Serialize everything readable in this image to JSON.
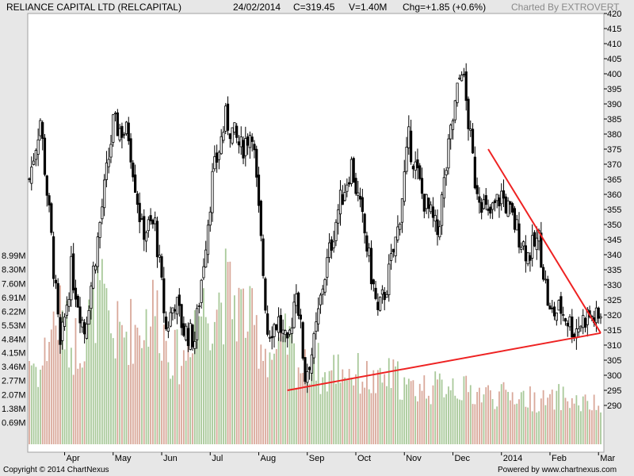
{
  "header": {
    "title": "RELIANCE CAPITAL LTD (RELCAPITAL)",
    "date": "24/02/2014",
    "close": "C=319.45",
    "volume": "V=1.40M",
    "change": "Chg=+1.85 (+0.6%)",
    "credit": "Charted By EXTROVERT"
  },
  "footer": {
    "copyright": "Copyright © 2014 ChartNexus",
    "powered": "Powered by www.chartnexus.com"
  },
  "colors": {
    "background": "#ffffff",
    "frame": "#e7e7e7",
    "candle": "#000000",
    "volume_up": "#a9c99a",
    "volume_down": "#d9a89a",
    "trendline": "#ee2222"
  },
  "chart_data": {
    "type": "candlestick",
    "price_axis": {
      "position": "right",
      "min": 285,
      "max": 420,
      "ticks": [
        290,
        295,
        300,
        305,
        310,
        315,
        320,
        325,
        330,
        335,
        340,
        345,
        350,
        355,
        360,
        365,
        370,
        375,
        380,
        385,
        390,
        395,
        400,
        405,
        410,
        415,
        420
      ]
    },
    "volume_axis": {
      "position": "left",
      "ticks": [
        "0.69M",
        "1.38M",
        "2.07M",
        "2.77M",
        "3.46M",
        "4.15M",
        "4.84M",
        "5.53M",
        "6.22M",
        "6.91M",
        "7.60M",
        "8.30M",
        "8.99M"
      ],
      "values": [
        0.69,
        1.38,
        2.07,
        2.77,
        3.46,
        4.15,
        4.84,
        5.53,
        6.22,
        6.91,
        7.6,
        8.3,
        8.99
      ]
    },
    "x_labels": [
      {
        "label": "Apr",
        "day": 16
      },
      {
        "label": "May",
        "day": 38
      },
      {
        "label": "Jun",
        "day": 60
      },
      {
        "label": "Jul",
        "day": 82
      },
      {
        "label": "Aug",
        "day": 104
      },
      {
        "label": "Sep",
        "day": 126
      },
      {
        "label": "Oct",
        "day": 148
      },
      {
        "label": "Nov",
        "day": 170
      },
      {
        "label": "Dec",
        "day": 192
      },
      {
        "label": "2014",
        "day": 214
      },
      {
        "label": "Feb",
        "day": 236
      },
      {
        "label": "Mar",
        "day": 258
      }
    ],
    "total_days": 260,
    "price_path": [
      [
        0,
        365
      ],
      [
        5,
        385
      ],
      [
        10,
        345
      ],
      [
        14,
        308
      ],
      [
        19,
        335
      ],
      [
        25,
        315
      ],
      [
        31,
        345
      ],
      [
        38,
        383
      ],
      [
        45,
        380
      ],
      [
        51,
        348
      ],
      [
        57,
        350
      ],
      [
        62,
        315
      ],
      [
        66,
        325
      ],
      [
        70,
        315
      ],
      [
        75,
        312
      ],
      [
        83,
        365
      ],
      [
        89,
        385
      ],
      [
        96,
        375
      ],
      [
        101,
        382
      ],
      [
        108,
        315
      ],
      [
        113,
        318
      ],
      [
        117,
        308
      ],
      [
        121,
        330
      ],
      [
        125,
        300
      ],
      [
        129,
        310
      ],
      [
        133,
        330
      ],
      [
        140,
        355
      ],
      [
        146,
        370
      ],
      [
        152,
        347
      ],
      [
        158,
        320
      ],
      [
        162,
        330
      ],
      [
        167,
        348
      ],
      [
        172,
        378
      ],
      [
        178,
        360
      ],
      [
        185,
        347
      ],
      [
        191,
        380
      ],
      [
        196,
        403
      ],
      [
        202,
        365
      ],
      [
        208,
        352
      ],
      [
        214,
        360
      ],
      [
        220,
        350
      ],
      [
        226,
        340
      ],
      [
        231,
        345
      ],
      [
        236,
        320
      ],
      [
        241,
        322
      ],
      [
        247,
        315
      ],
      [
        253,
        320
      ],
      [
        258,
        318
      ],
      [
        259,
        319.45
      ]
    ],
    "volume_path": [
      [
        0,
        3.9
      ],
      [
        5,
        3.2
      ],
      [
        10,
        5.5
      ],
      [
        14,
        6.0
      ],
      [
        19,
        4.5
      ],
      [
        25,
        5.0
      ],
      [
        31,
        7.3
      ],
      [
        38,
        5.0
      ],
      [
        45,
        5.3
      ],
      [
        51,
        5.5
      ],
      [
        57,
        6.5
      ],
      [
        62,
        4.8
      ],
      [
        66,
        4.0
      ],
      [
        70,
        3.8
      ],
      [
        75,
        6.2
      ],
      [
        83,
        6.5
      ],
      [
        89,
        7.1
      ],
      [
        96,
        6.4
      ],
      [
        101,
        5.5
      ],
      [
        108,
        4.2
      ],
      [
        113,
        3.9
      ],
      [
        117,
        4.8
      ],
      [
        121,
        3.7
      ],
      [
        125,
        3.3
      ],
      [
        129,
        4.2
      ],
      [
        133,
        2.8
      ],
      [
        140,
        3.5
      ],
      [
        146,
        3.2
      ],
      [
        152,
        3.0
      ],
      [
        158,
        2.5
      ],
      [
        162,
        3.0
      ],
      [
        167,
        2.9
      ],
      [
        172,
        2.3
      ],
      [
        178,
        2.5
      ],
      [
        185,
        2.4
      ],
      [
        191,
        2.8
      ],
      [
        196,
        2.3
      ],
      [
        202,
        2.2
      ],
      [
        208,
        2.1
      ],
      [
        214,
        2.0
      ],
      [
        220,
        2.1
      ],
      [
        226,
        1.9
      ],
      [
        231,
        1.8
      ],
      [
        236,
        1.7
      ],
      [
        241,
        2.0
      ],
      [
        247,
        1.7
      ],
      [
        253,
        1.6
      ],
      [
        258,
        1.5
      ],
      [
        259,
        1.4
      ]
    ],
    "trendlines": [
      {
        "from": {
          "day": 117,
          "price": 295
        },
        "to": {
          "day": 259,
          "price": 314
        }
      },
      {
        "from": {
          "day": 208,
          "price": 375
        },
        "to": {
          "day": 259,
          "price": 314
        }
      }
    ]
  }
}
